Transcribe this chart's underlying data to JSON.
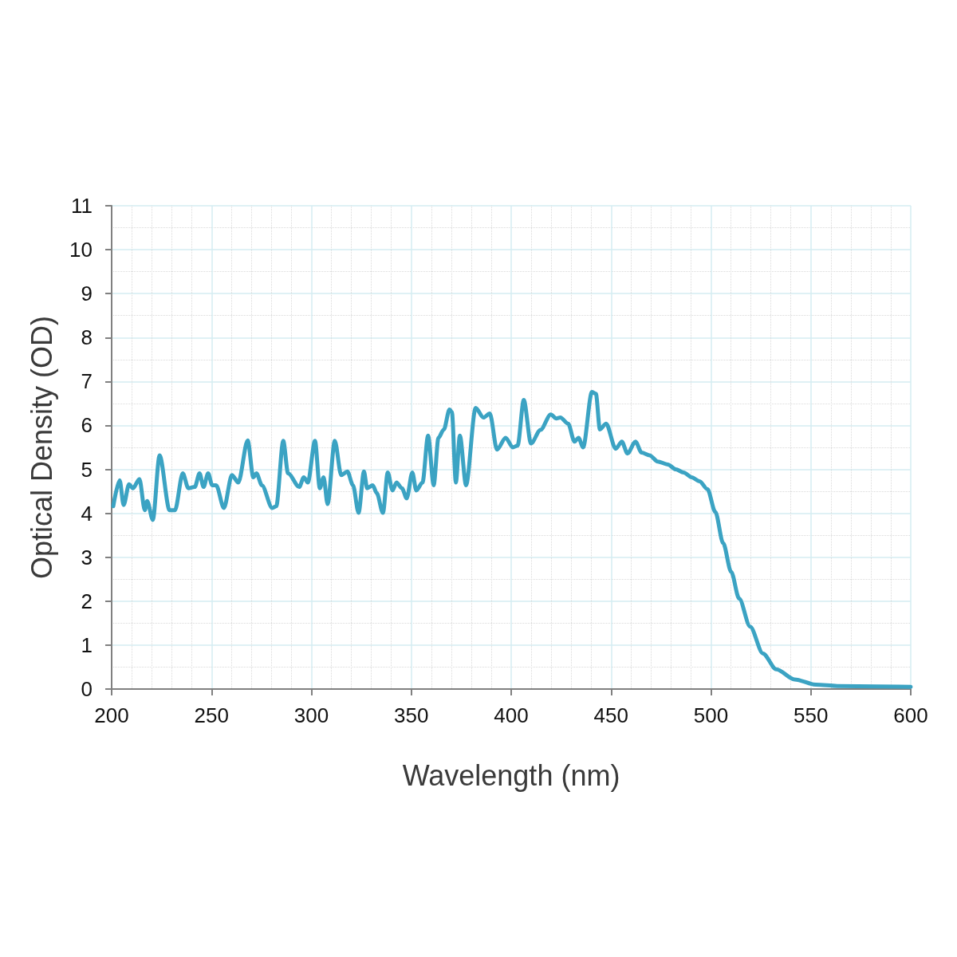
{
  "chart_data": {
    "type": "line",
    "xlabel": "Wavelength (nm)",
    "ylabel": "Optical Density (OD)",
    "xlim": [
      200,
      600
    ],
    "xticks": [
      200,
      250,
      300,
      350,
      400,
      450,
      500,
      550,
      600
    ],
    "ylim": [
      0,
      11
    ],
    "yticks": [
      0,
      1,
      2,
      3,
      4,
      5,
      6,
      7,
      8,
      9,
      10,
      11
    ],
    "grid": true,
    "marker": "none",
    "line_style": "solid",
    "series": [
      {
        "color": "#3ba3c3",
        "x": [
          200.8,
          204,
          206,
          208.7,
          210.7,
          213.9,
          216.6,
          217.8,
          220.6,
          224,
          229,
          231.7,
          235.6,
          238.4,
          241.6,
          244,
          246,
          248.3,
          250.3,
          252.3,
          256.2,
          260.2,
          263.4,
          268.1,
          270.9,
          272.5,
          275.2,
          280.4,
          282.4,
          285.9,
          288.3,
          293.9,
          296.2,
          298.2,
          301.8,
          304.2,
          306.1,
          308.1,
          311.7,
          314.9,
          318,
          320.8,
          323.6,
          326.3,
          327.9,
          330.7,
          332.7,
          335.8,
          338.2,
          340.6,
          342.6,
          345.3,
          347.7,
          350.5,
          352.5,
          355.6,
          358.4,
          361.2,
          363.6,
          366.3,
          369.1,
          370.3,
          372.3,
          374.3,
          377.4,
          382.2,
          386.1,
          389.3,
          392.9,
          397.2,
          400.8,
          403.2,
          406.3,
          409.9,
          414.7,
          419.8,
          422.6,
          424.6,
          428.5,
          431.7,
          433.7,
          436,
          440.4,
          442.4,
          444.4,
          447.5,
          452.3,
          455.4,
          458.2,
          462.2,
          465.3,
          469.3,
          473.3,
          478.4,
          482.4,
          486.3,
          490.3,
          494.3,
          498.2,
          502.2,
          506.1,
          510.1,
          514.1,
          519.6,
          526,
          532.7,
          541.8,
          552.5,
          563.2,
          600
        ],
        "values": [
          4.16,
          4.75,
          4.19,
          4.66,
          4.57,
          4.78,
          4.07,
          4.28,
          3.85,
          5.32,
          4.07,
          4.07,
          4.91,
          4.57,
          4.6,
          4.91,
          4.6,
          4.91,
          4.64,
          4.64,
          4.12,
          4.87,
          4.7,
          5.66,
          4.82,
          4.91,
          4.64,
          4.12,
          4.16,
          5.65,
          4.91,
          4.6,
          4.82,
          4.7,
          5.65,
          4.57,
          4.82,
          4.21,
          5.65,
          4.87,
          4.95,
          4.64,
          4.01,
          4.95,
          4.57,
          4.64,
          4.46,
          4.01,
          4.93,
          4.52,
          4.7,
          4.57,
          4.34,
          4.93,
          4.52,
          4.7,
          5.77,
          4.64,
          5.72,
          5.91,
          6.36,
          6.31,
          4.7,
          5.77,
          4.64,
          6.4,
          6.18,
          6.27,
          5.45,
          5.72,
          5.5,
          5.54,
          6.58,
          5.59,
          5.9,
          6.25,
          6.16,
          6.18,
          6.04,
          5.63,
          5.72,
          5.5,
          6.76,
          6.72,
          5.91,
          6.04,
          5.47,
          5.63,
          5.36,
          5.63,
          5.38,
          5.32,
          5.18,
          5.11,
          5,
          4.93,
          4.82,
          4.73,
          4.55,
          4.03,
          3.32,
          2.67,
          2.06,
          1.42,
          0.81,
          0.45,
          0.22,
          0.1,
          0.07,
          0.05
        ]
      }
    ]
  }
}
